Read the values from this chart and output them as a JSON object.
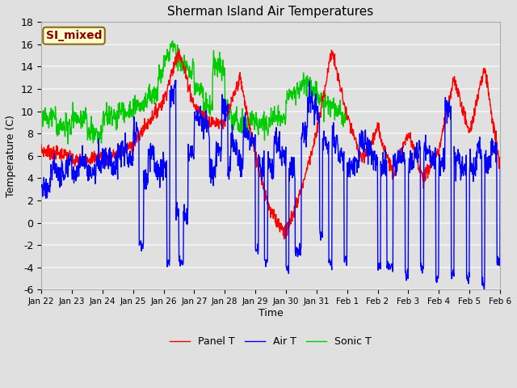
{
  "title": "Sherman Island Air Temperatures",
  "xlabel": "Time",
  "ylabel": "Temperature (C)",
  "ylim": [
    -6,
    18
  ],
  "yticks": [
    -6,
    -4,
    -2,
    0,
    2,
    4,
    6,
    8,
    10,
    12,
    14,
    16,
    18
  ],
  "x_labels": [
    "Jan 22",
    "Jan 23",
    "Jan 24",
    "Jan 25",
    "Jan 26",
    "Jan 27",
    "Jan 28",
    "Jan 29",
    "Jan 30",
    "Jan 31",
    "Feb 1",
    "Feb 2",
    "Feb 3",
    "Feb 4",
    "Feb 5",
    "Feb 6"
  ],
  "label_box_text": "SI_mixed",
  "label_box_facecolor": "#ffffcc",
  "label_box_edgecolor": "#8b6914",
  "label_box_textcolor": "#8b0000",
  "legend_labels": [
    "Panel T",
    "Air T",
    "Sonic T"
  ],
  "line_colors": [
    "#ff0000",
    "#0000ff",
    "#00cc00"
  ],
  "bg_color": "#e0e0e0",
  "grid_color": "#f5f5f5",
  "n_points": 1500
}
